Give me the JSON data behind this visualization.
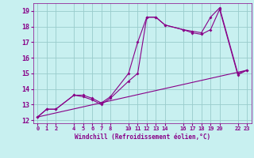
{
  "xlabel": "Windchill (Refroidissement éolien,°C)",
  "background_color": "#c8f0f0",
  "grid_color": "#99cccc",
  "line_color": "#880088",
  "x_ticks": [
    0,
    1,
    2,
    4,
    5,
    6,
    7,
    8,
    10,
    11,
    12,
    13,
    14,
    16,
    17,
    18,
    19,
    20,
    22,
    23
  ],
  "x_tick_labels": [
    "0",
    "1",
    "2",
    "4",
    "5",
    "6",
    "7",
    "8",
    "10",
    "11",
    "12",
    "13",
    "14",
    "16",
    "17",
    "18",
    "19",
    "20",
    "22",
    "23"
  ],
  "ylim": [
    11.8,
    19.5
  ],
  "xlim": [
    -0.5,
    23.5
  ],
  "yticks": [
    12,
    13,
    14,
    15,
    16,
    17,
    18,
    19
  ],
  "series1_x": [
    0,
    1,
    2,
    4,
    5,
    6,
    7,
    8,
    10,
    11,
    12,
    13,
    14,
    16,
    17,
    18,
    19,
    20,
    22,
    23
  ],
  "series1_y": [
    12.2,
    12.7,
    12.7,
    13.6,
    13.6,
    13.4,
    13.1,
    13.5,
    15.0,
    17.0,
    18.6,
    18.6,
    18.1,
    17.8,
    17.6,
    17.5,
    17.8,
    19.1,
    14.9,
    15.2
  ],
  "series2_x": [
    0,
    1,
    2,
    4,
    5,
    6,
    7,
    8,
    10,
    11,
    12,
    13,
    14,
    16,
    17,
    18,
    19,
    20,
    22,
    23
  ],
  "series2_y": [
    12.2,
    12.7,
    12.7,
    13.6,
    13.5,
    13.3,
    13.0,
    13.4,
    14.5,
    15.0,
    18.6,
    18.6,
    18.1,
    17.8,
    17.7,
    17.6,
    18.6,
    19.2,
    15.0,
    15.2
  ],
  "series3_x": [
    0,
    23
  ],
  "series3_y": [
    12.2,
    15.2
  ]
}
